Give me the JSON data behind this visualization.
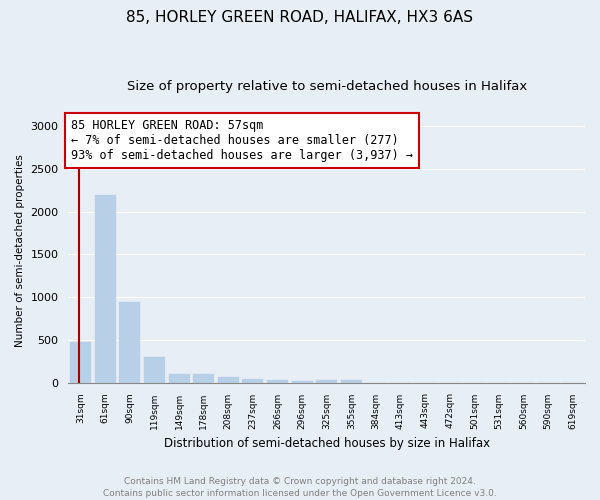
{
  "title1": "85, HORLEY GREEN ROAD, HALIFAX, HX3 6AS",
  "title2": "Size of property relative to semi-detached houses in Halifax",
  "xlabel": "Distribution of semi-detached houses by size in Halifax",
  "ylabel": "Number of semi-detached properties",
  "categories": [
    "31sqm",
    "61sqm",
    "90sqm",
    "119sqm",
    "149sqm",
    "178sqm",
    "208sqm",
    "237sqm",
    "266sqm",
    "296sqm",
    "325sqm",
    "355sqm",
    "384sqm",
    "413sqm",
    "443sqm",
    "472sqm",
    "501sqm",
    "531sqm",
    "560sqm",
    "590sqm",
    "619sqm"
  ],
  "values": [
    470,
    2200,
    940,
    305,
    105,
    105,
    62,
    42,
    30,
    22,
    32,
    32,
    0,
    0,
    0,
    0,
    0,
    0,
    0,
    0,
    0
  ],
  "bar_color": "#b8cfe8",
  "bar_edge_color": "#b8cfe8",
  "highlight_line_color": "#aa0000",
  "annotation_text": "85 HORLEY GREEN ROAD: 57sqm\n← 7% of semi-detached houses are smaller (277)\n93% of semi-detached houses are larger (3,937) →",
  "annotation_box_color": "#ffffff",
  "annotation_box_edge": "#cc0000",
  "ylim": [
    0,
    3100
  ],
  "yticks": [
    0,
    500,
    1000,
    1500,
    2000,
    2500,
    3000
  ],
  "background_color": "#e8eef5",
  "plot_bg_color": "#e8eef5",
  "footer": "Contains HM Land Registry data © Crown copyright and database right 2024.\nContains public sector information licensed under the Open Government Licence v3.0.",
  "title1_fontsize": 11,
  "title2_fontsize": 9.5,
  "annotation_fontsize": 8.5,
  "footer_fontsize": 6.5,
  "property_bin_index": 0,
  "property_line_x": -0.07
}
